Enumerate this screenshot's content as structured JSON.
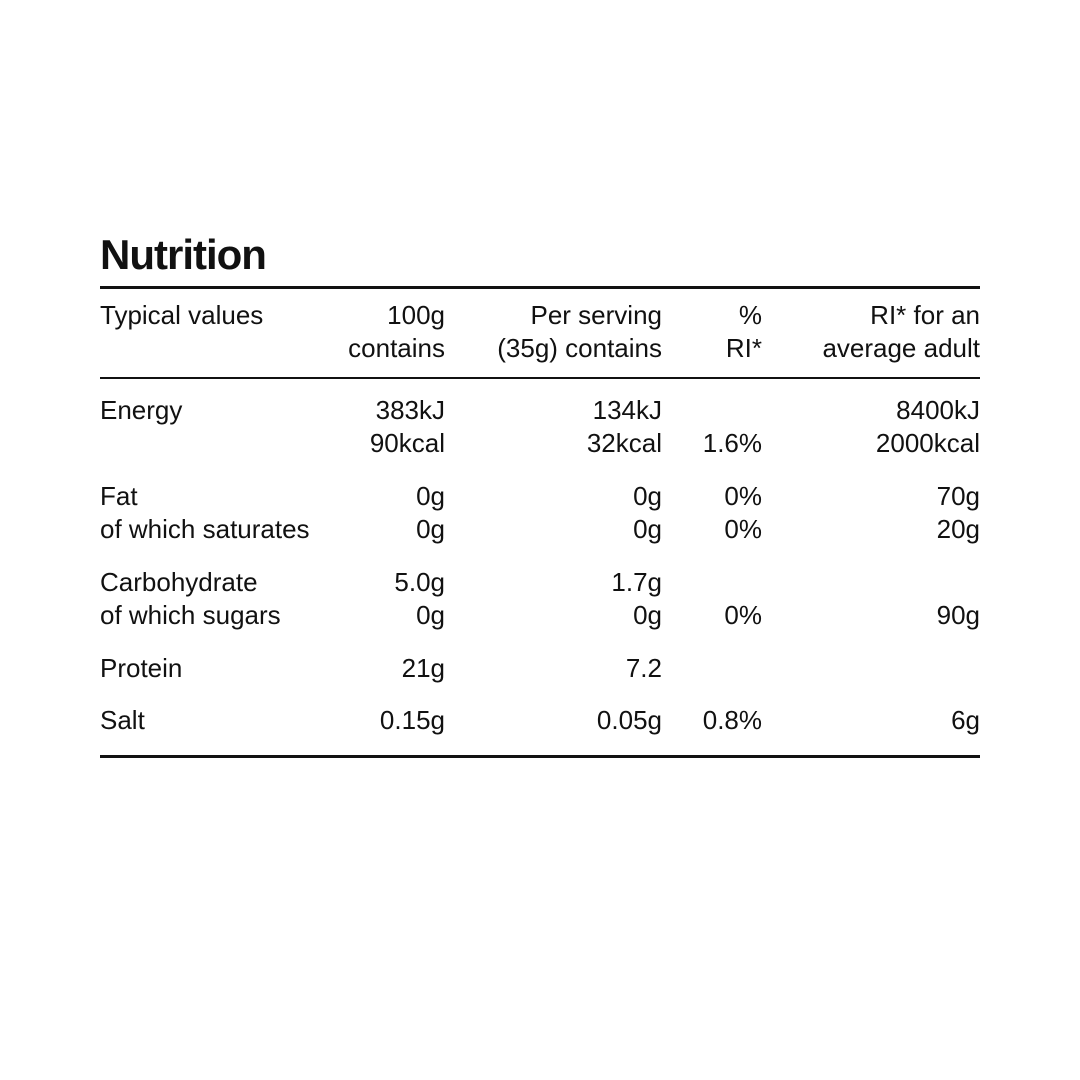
{
  "title": "Nutrition",
  "table": {
    "header": [
      [
        "Typical values"
      ],
      [
        "100g",
        "contains"
      ],
      [
        "Per serving",
        "(35g) contains"
      ],
      [
        "%",
        "RI*"
      ],
      [
        "RI* for an",
        "average adult"
      ]
    ],
    "rows": [
      [
        [
          "Energy"
        ],
        [
          "383kJ",
          "90kcal"
        ],
        [
          "134kJ",
          "32kcal"
        ],
        [
          null,
          "1.6%"
        ],
        [
          "8400kJ",
          "2000kcal"
        ]
      ],
      [
        [
          "Fat",
          "of which saturates"
        ],
        [
          "0g",
          "0g"
        ],
        [
          "0g",
          "0g"
        ],
        [
          "0%",
          "0%"
        ],
        [
          "70g",
          "20g"
        ]
      ],
      [
        [
          "Carbohydrate",
          "of which sugars"
        ],
        [
          "5.0g",
          "0g"
        ],
        [
          "1.7g",
          "0g"
        ],
        [
          null,
          "0%"
        ],
        [
          null,
          "90g"
        ]
      ],
      [
        [
          "Protein"
        ],
        [
          "21g"
        ],
        [
          "7.2"
        ],
        [],
        []
      ],
      [
        [
          "Salt"
        ],
        [
          "0.15g"
        ],
        [
          "0.05g"
        ],
        [
          "0.8%"
        ],
        [
          "6g"
        ]
      ]
    ]
  }
}
